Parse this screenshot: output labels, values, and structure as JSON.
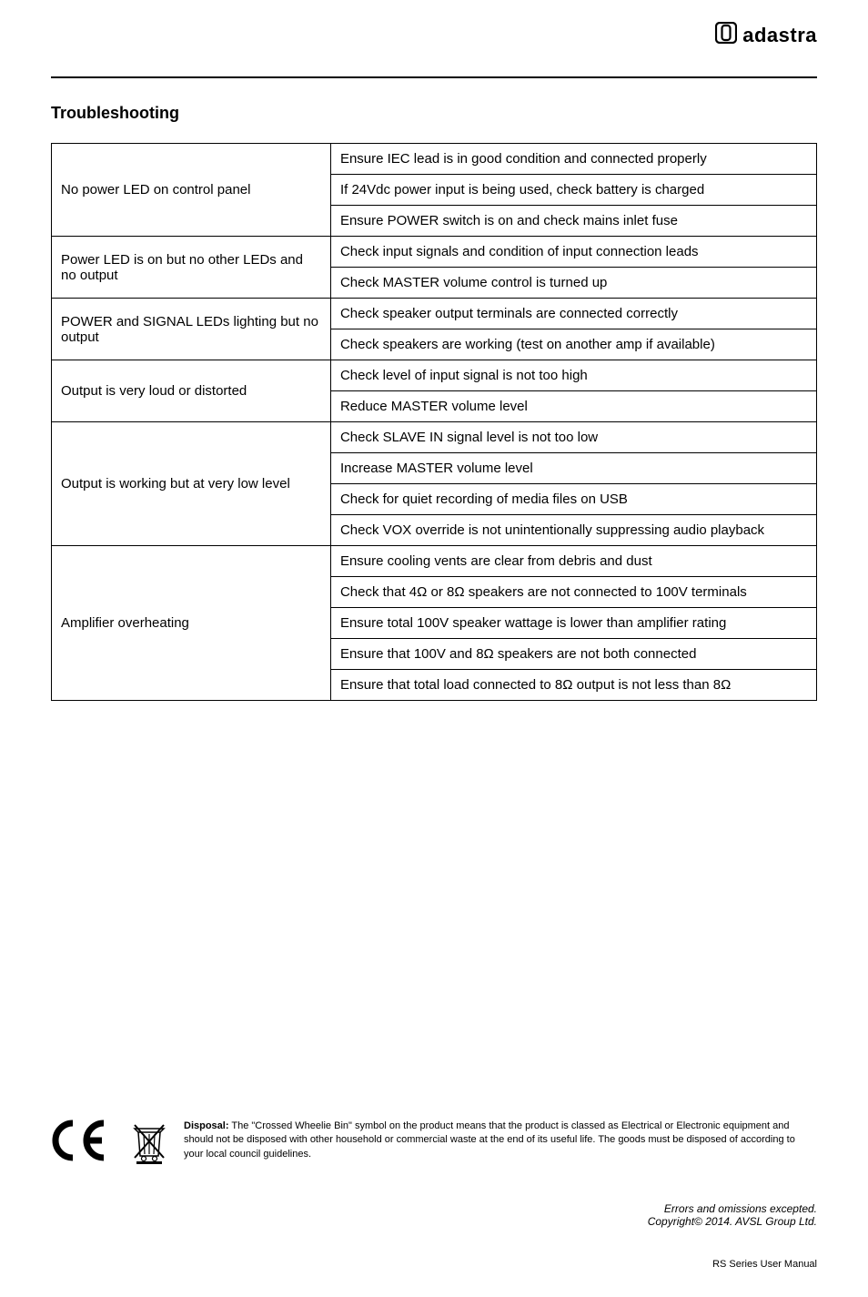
{
  "brand": {
    "name": "adastra"
  },
  "section": {
    "title": "Troubleshooting"
  },
  "table": {
    "columns": [
      "issue",
      "resolution"
    ],
    "widths": [
      "34%",
      "66%"
    ],
    "border_color": "#000000",
    "font_size": 15,
    "rows": [
      {
        "issue": "No power LED on control panel",
        "span": 3,
        "resolutions": [
          "Ensure IEC lead is in good condition and connected properly",
          "If 24Vdc power input is being used, check battery is charged",
          "Ensure POWER switch is on and check mains inlet fuse"
        ]
      },
      {
        "issue": "Power LED is on but no other LEDs and no output",
        "span": 2,
        "resolutions": [
          "Check input signals and condition of input connection leads",
          "Check MASTER volume control is turned up"
        ]
      },
      {
        "issue": "POWER and SIGNAL LEDs lighting but no output",
        "span": 2,
        "resolutions": [
          "Check speaker output terminals are connected correctly",
          "Check speakers are working (test on another amp if available)"
        ]
      },
      {
        "issue": "Output is very loud or distorted",
        "span": 2,
        "resolutions": [
          "Check level of input signal is not too high",
          "Reduce MASTER volume level"
        ]
      },
      {
        "issue": "Output is working but at very low level",
        "span": 4,
        "resolutions": [
          "Check SLAVE IN signal level is not too low",
          "Increase MASTER volume level",
          "Check for quiet recording of media files on USB",
          "Check VOX override is not unintentionally suppressing audio playback"
        ]
      },
      {
        "issue": "Amplifier overheating",
        "span": 5,
        "resolutions": [
          "Ensure cooling vents are clear from debris and dust",
          "Check that 4Ω or 8Ω speakers are not connected to 100V terminals",
          "Ensure total 100V speaker wattage is lower than amplifier rating",
          "Ensure that 100V and 8Ω speakers are not both connected",
          "Ensure that total load connected to 8Ω output is not less than 8Ω"
        ]
      }
    ]
  },
  "disposal": {
    "label": "Disposal:",
    "text": " The \"Crossed Wheelie Bin\" symbol on the product means that the product is classed as Electrical or Electronic equipment and should not be disposed with other household or commercial waste at the end of its useful life. The goods must be disposed of according to your local council guidelines."
  },
  "footer": {
    "line1": "Errors and omissions excepted.",
    "line2": "Copyright© 2014. AVSL Group Ltd.",
    "manual": "RS Series User Manual"
  },
  "colors": {
    "background": "#ffffff",
    "text": "#000000",
    "rule": "#000000"
  },
  "icons": {
    "ce_mark": "ce-mark-icon",
    "weee_bin": "weee-bin-icon",
    "brand_logo": "adastra-logo-icon"
  }
}
